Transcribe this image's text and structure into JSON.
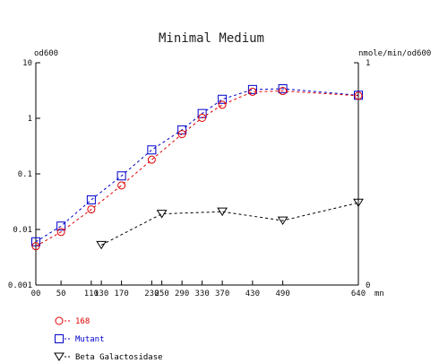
{
  "chart_data": {
    "type": "line",
    "title": "Minimal Medium",
    "left_axis": {
      "label": "od600",
      "scale": "log",
      "ylim": [
        0.001,
        10
      ],
      "ticks": [
        10,
        1,
        0.1,
        0.01,
        0.001
      ],
      "tick_labels": [
        "10",
        "1",
        "0.1",
        "0.01",
        "0.001"
      ]
    },
    "right_axis": {
      "label": "nmole/min/od600",
      "scale": "linear",
      "ylim": [
        0,
        1
      ],
      "ticks": [
        1,
        0
      ],
      "tick_labels": [
        "1",
        "0"
      ]
    },
    "x_axis": {
      "unit_label": "mn",
      "xlim": [
        0,
        640
      ],
      "ticks": [
        0,
        50,
        110,
        130,
        170,
        230,
        250,
        290,
        330,
        370,
        430,
        490,
        640
      ],
      "tick_labels": [
        "00",
        "50",
        "110",
        "130",
        "170",
        "230",
        "250",
        "290",
        "330",
        "370",
        "430",
        "490",
        "640"
      ]
    },
    "grid": false,
    "legend_placement": "bottom-left",
    "series": [
      {
        "name": "168",
        "axis": "left",
        "color": "#e00000",
        "marker": "circle",
        "x": [
          0,
          50,
          110,
          170,
          230,
          290,
          330,
          370,
          430,
          490,
          640
        ],
        "y": [
          0.005,
          0.009,
          0.023,
          0.062,
          0.18,
          0.52,
          1.02,
          1.75,
          3.0,
          3.1,
          2.55
        ]
      },
      {
        "name": "Mutant",
        "axis": "left",
        "color": "#0000cc",
        "marker": "square",
        "x": [
          0,
          50,
          110,
          170,
          230,
          290,
          330,
          370,
          430,
          490,
          640
        ],
        "y": [
          0.006,
          0.0115,
          0.034,
          0.092,
          0.27,
          0.62,
          1.22,
          2.2,
          3.3,
          3.4,
          2.6
        ]
      },
      {
        "name": "Beta Galactosidase",
        "axis": "right",
        "color": "#000000",
        "marker": "triangle-down",
        "x": [
          130,
          250,
          370,
          490,
          640
        ],
        "y": [
          0.18,
          0.32,
          0.33,
          0.29,
          0.37
        ]
      }
    ]
  }
}
